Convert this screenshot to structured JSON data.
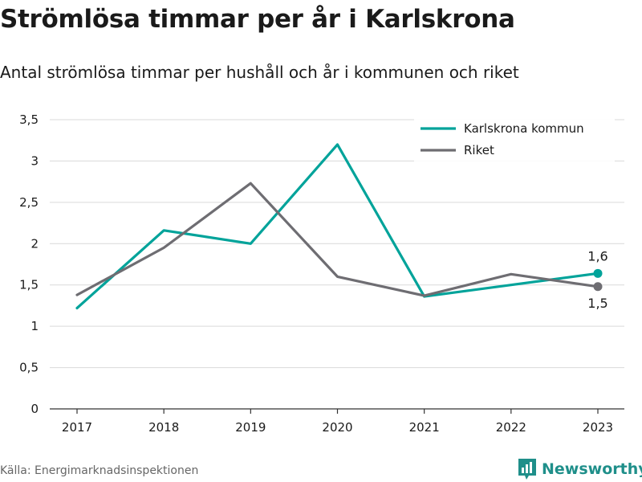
{
  "page": {
    "title": "Strömlösa timmar per år i Karlskrona",
    "subtitle": "Antal strömlösa timmar per hushåll och år i kommunen och riket",
    "source": "Källa: Energimarknadsinspektionen",
    "brand": "Newsworthy",
    "brand_color": "#1f8f8a"
  },
  "chart_data": {
    "type": "line",
    "title": "Strömlösa timmar per år i Karlskrona",
    "subtitle": "Antal strömlösa timmar per hushåll och år i kommunen och riket",
    "x": [
      "2017",
      "2018",
      "2019",
      "2020",
      "2021",
      "2022",
      "2023"
    ],
    "ylim": [
      0,
      3.5
    ],
    "yticks": [
      0,
      0.5,
      1,
      1.5,
      2,
      2.5,
      3,
      3.5
    ],
    "ytick_labels": [
      "0",
      "0,5",
      "1",
      "1,5",
      "2",
      "2,5",
      "3",
      "3,5"
    ],
    "grid": true,
    "legend_position": "top-right",
    "series": [
      {
        "name": "Karlskrona kommun",
        "color": "#00a39a",
        "values": [
          1.22,
          2.16,
          2.0,
          3.2,
          1.36,
          1.5,
          1.64
        ],
        "end_label": "1,6",
        "end_label_position": "above"
      },
      {
        "name": "Riket",
        "color": "#6e6d72",
        "values": [
          1.38,
          1.95,
          2.73,
          1.6,
          1.37,
          1.63,
          1.48
        ],
        "end_label": "1,5",
        "end_label_position": "below"
      }
    ]
  }
}
